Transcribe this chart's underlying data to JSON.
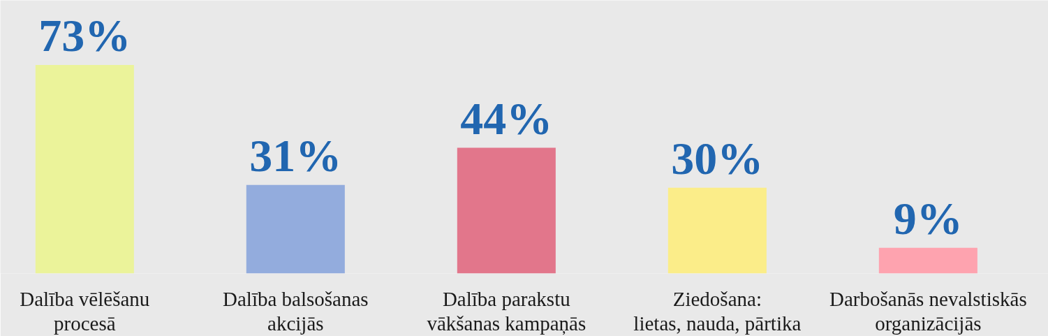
{
  "chart_data": {
    "type": "bar",
    "categories": [
      "Dalība vēlēšanu\nprocesā",
      "Dalība balsošanas\nakcijās",
      "Dalība parakstu\nvākšanas kampaņās",
      "Ziedošana:\nlietas, nauda, pārtika",
      "Darbošanās nevalstiskās\norganizācijās"
    ],
    "values": [
      73,
      31,
      44,
      30,
      9
    ],
    "colors": [
      "#ebf39a",
      "#93acdd",
      "#e2768b",
      "#fbed89",
      "#fea3af"
    ],
    "value_labels": [
      "73%",
      "31%",
      "44%",
      "30%",
      "9%"
    ]
  }
}
